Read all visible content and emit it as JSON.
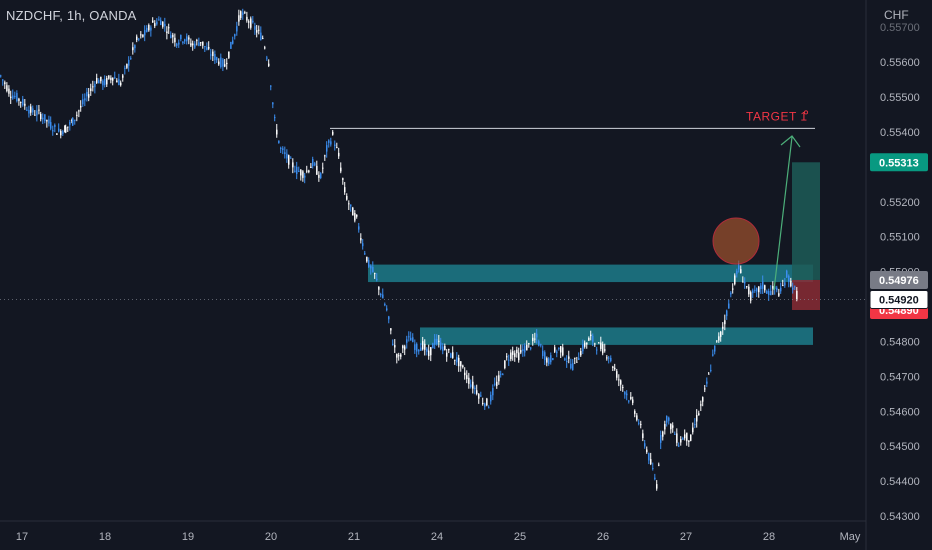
{
  "header": {
    "symbol_line": "NZDCHF, 1h, OANDA",
    "currency": "CHF"
  },
  "chart_data": {
    "type": "candlestick",
    "symbol": "NZDCHF",
    "interval": "1h",
    "source": "OANDA",
    "currency": "CHF",
    "ylim": [
      0.543,
      0.5574
    ],
    "y_ticks": [
      "0.55600",
      "0.55500",
      "0.55400",
      "0.55200",
      "0.55100",
      "0.54800",
      "0.54700",
      "0.54600",
      "0.54500",
      "0.54400",
      "0.54300"
    ],
    "y_ticks_partial": [
      "0.55700",
      "0.55000",
      "0.54890"
    ],
    "x_ticks": [
      "17",
      "18",
      "19",
      "20",
      "21",
      "24",
      "25",
      "26",
      "27",
      "28",
      "May"
    ],
    "price_path": [
      [
        0,
        0.5556
      ],
      [
        10,
        0.5551
      ],
      [
        20,
        0.5549
      ],
      [
        30,
        0.5546
      ],
      [
        40,
        0.5545
      ],
      [
        50,
        0.5542
      ],
      [
        58,
        0.554
      ],
      [
        65,
        0.5541
      ],
      [
        72,
        0.5543
      ],
      [
        80,
        0.5547
      ],
      [
        88,
        0.5551
      ],
      [
        96,
        0.5555
      ],
      [
        104,
        0.5554
      ],
      [
        112,
        0.5556
      ],
      [
        120,
        0.5554
      ],
      [
        128,
        0.556
      ],
      [
        136,
        0.5566
      ],
      [
        144,
        0.5568
      ],
      [
        152,
        0.5571
      ],
      [
        160,
        0.5572
      ],
      [
        168,
        0.5569
      ],
      [
        176,
        0.5566
      ],
      [
        184,
        0.5567
      ],
      [
        192,
        0.5565
      ],
      [
        200,
        0.5566
      ],
      [
        208,
        0.5563
      ],
      [
        216,
        0.5561
      ],
      [
        224,
        0.5559
      ],
      [
        232,
        0.5566
      ],
      [
        240,
        0.5574
      ],
      [
        248,
        0.5572
      ],
      [
        256,
        0.5569
      ],
      [
        262,
        0.5567
      ],
      [
        268,
        0.556
      ],
      [
        274,
        0.5543
      ],
      [
        280,
        0.5535
      ],
      [
        288,
        0.5532
      ],
      [
        296,
        0.5529
      ],
      [
        304,
        0.5528
      ],
      [
        312,
        0.5531
      ],
      [
        320,
        0.5527
      ],
      [
        326,
        0.5535
      ],
      [
        332,
        0.5539
      ],
      [
        338,
        0.5533
      ],
      [
        344,
        0.5523
      ],
      [
        350,
        0.5518
      ],
      [
        356,
        0.5515
      ],
      [
        362,
        0.5508
      ],
      [
        368,
        0.5502
      ],
      [
        374,
        0.5499
      ],
      [
        380,
        0.5494
      ],
      [
        386,
        0.5489
      ],
      [
        392,
        0.548
      ],
      [
        398,
        0.5475
      ],
      [
        404,
        0.5479
      ],
      [
        410,
        0.5481
      ],
      [
        416,
        0.5478
      ],
      [
        422,
        0.5479
      ],
      [
        428,
        0.5476
      ],
      [
        434,
        0.548
      ],
      [
        440,
        0.5479
      ],
      [
        446,
        0.5477
      ],
      [
        452,
        0.5476
      ],
      [
        458,
        0.5474
      ],
      [
        464,
        0.5471
      ],
      [
        470,
        0.5468
      ],
      [
        476,
        0.5466
      ],
      [
        482,
        0.5463
      ],
      [
        488,
        0.5462
      ],
      [
        494,
        0.5467
      ],
      [
        500,
        0.547
      ],
      [
        506,
        0.5475
      ],
      [
        512,
        0.5477
      ],
      [
        518,
        0.5476
      ],
      [
        524,
        0.5478
      ],
      [
        530,
        0.5479
      ],
      [
        536,
        0.5481
      ],
      [
        542,
        0.5477
      ],
      [
        548,
        0.5474
      ],
      [
        554,
        0.5477
      ],
      [
        560,
        0.5478
      ],
      [
        566,
        0.5475
      ],
      [
        572,
        0.5473
      ],
      [
        578,
        0.5476
      ],
      [
        584,
        0.5479
      ],
      [
        590,
        0.5481
      ],
      [
        596,
        0.5479
      ],
      [
        602,
        0.5478
      ],
      [
        608,
        0.5476
      ],
      [
        614,
        0.5472
      ],
      [
        620,
        0.5468
      ],
      [
        626,
        0.5465
      ],
      [
        632,
        0.5462
      ],
      [
        638,
        0.5457
      ],
      [
        644,
        0.5451
      ],
      [
        650,
        0.5445
      ],
      [
        656,
        0.5439
      ],
      [
        660,
        0.5452
      ],
      [
        666,
        0.5458
      ],
      [
        672,
        0.5455
      ],
      [
        678,
        0.5451
      ],
      [
        684,
        0.5453
      ],
      [
        690,
        0.5452
      ],
      [
        696,
        0.5458
      ],
      [
        702,
        0.5463
      ],
      [
        708,
        0.547
      ],
      [
        714,
        0.5478
      ],
      [
        720,
        0.5482
      ],
      [
        726,
        0.5488
      ],
      [
        732,
        0.5496
      ],
      [
        738,
        0.5501
      ],
      [
        744,
        0.5497
      ],
      [
        750,
        0.5493
      ],
      [
        756,
        0.5494
      ],
      [
        762,
        0.5496
      ],
      [
        768,
        0.5494
      ],
      [
        774,
        0.5495
      ],
      [
        780,
        0.5494
      ],
      [
        786,
        0.5499
      ],
      [
        792,
        0.5496
      ],
      [
        798,
        0.5492
      ]
    ],
    "annotations": {
      "target_label": "TARGET 1",
      "target_level": 0.5541,
      "current_price": "0.54920",
      "current_price_value": 0.5492,
      "gray_label": "0.54976",
      "gray_value": 0.54976,
      "green_label": "0.55313",
      "green_value": 0.55313,
      "red_label": "0.54890",
      "red_value": 0.5489,
      "zone_upper": [
        0.5497,
        0.5502
      ],
      "zone_lower": [
        0.5479,
        0.5484
      ],
      "profit_box": [
        0.54976,
        0.55313
      ],
      "loss_box": [
        0.5489,
        0.54976
      ]
    },
    "colors": {
      "background": "#131722",
      "candle_up": "#3b8ef0",
      "candle_down": "#ffffff",
      "zone": "#1f8a98",
      "profit": "#1d5c57",
      "loss": "#8a2b34",
      "target_text": "#f23645",
      "arrow": "#4caf7a",
      "circle": "#a0522d",
      "green_badge": "#089981",
      "red_badge": "#f23645",
      "gray_badge": "#787b86"
    }
  }
}
